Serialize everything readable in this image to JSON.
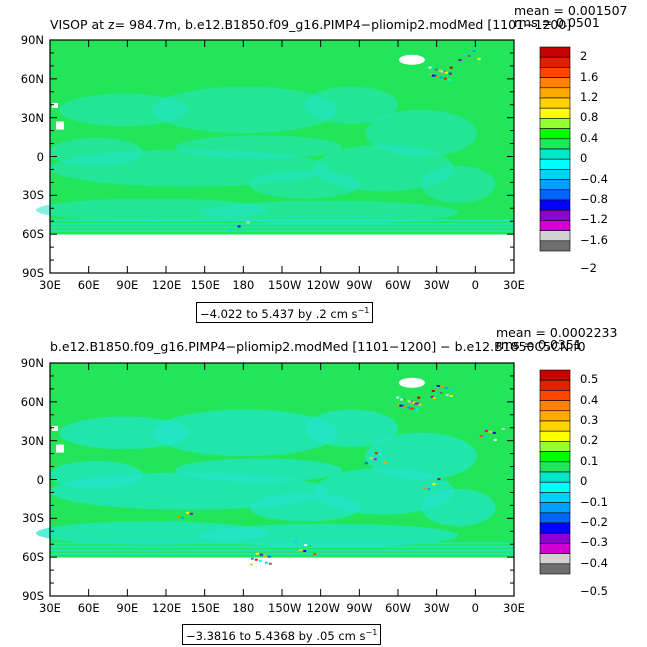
{
  "colors": {
    "field_main": "#22e55a",
    "field_secondary": "#22e5c8",
    "ice": "#ffffff",
    "palette": [
      "#f0f0f0",
      "#6e6e6e",
      "#d2d2d2",
      "#d200d2",
      "#8c00d2",
      "#0000ff",
      "#0064ff",
      "#00a0ff",
      "#00d2ff",
      "#00ffff",
      "#00e6c8",
      "#00ff00",
      "#96ff32",
      "#ffff00",
      "#ffd200",
      "#ffaa00",
      "#ff8200",
      "#ff4600",
      "#e61e00",
      "#c80000"
    ]
  },
  "panels": [
    {
      "title_left": "VISOP at z= 984.7m, b.e12.B1850.f09_g16.PIMP4−pliomip2.modMed [1101−1200]",
      "stat_mean": "mean = 0.001507",
      "stat_rms": "rms = 0.0501",
      "range_text": "−4.022 to 5.437 by .2 cm s",
      "range_unit_sup": "−1",
      "colorbar_labels": [
        "2",
        "1.6",
        "1.2",
        "0.8",
        "0.4",
        "0",
        "−0.4",
        "−0.8",
        "−1.2",
        "−1.6",
        "−2"
      ]
    },
    {
      "title_left": "b.e12.B1850.f09_g16.PIMP4−pliomip2.modMed [1101−1200] − b.e12.B1850C5CN.f0",
      "stat_mean": "mean = 0.0002233",
      "stat_rms": "rms = 0.0351",
      "range_text": "−3.3816 to 5.4368 by .05 cm s",
      "range_unit_sup": "−1",
      "colorbar_labels": [
        "0.5",
        "0.4",
        "0.3",
        "0.2",
        "0.1",
        "0",
        "−0.1",
        "−0.2",
        "−0.3",
        "−0.4",
        "−0.5"
      ]
    }
  ],
  "lat_labels": [
    "90N",
    "60N",
    "30N",
    "0",
    "30S",
    "60S",
    "90S"
  ],
  "lon_labels": [
    "30E",
    "60E",
    "90E",
    "120E",
    "150E",
    "180",
    "150W",
    "120W",
    "90W",
    "60W",
    "30W",
    "0",
    "30E"
  ]
}
